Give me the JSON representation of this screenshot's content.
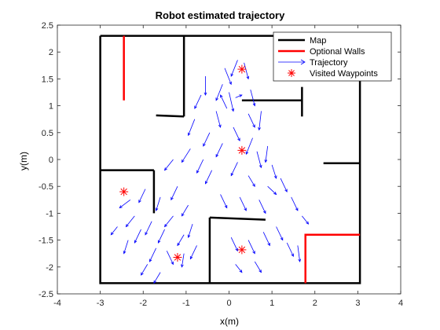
{
  "chart_data": {
    "type": "line",
    "title": "Robot estimated trajectory",
    "xlabel": "x(m)",
    "ylabel": "y(m)",
    "xlim": [
      -4,
      4
    ],
    "ylim": [
      -2.5,
      2.5
    ],
    "xticks": [
      -4,
      -3,
      -2,
      -1,
      0,
      1,
      2,
      3,
      4
    ],
    "yticks": [
      -2.5,
      -2,
      -1.5,
      -1,
      -0.5,
      0,
      0.5,
      1,
      1.5,
      2,
      2.5
    ],
    "grid": false,
    "legend_position": "top-right",
    "legend": [
      {
        "label": "Map",
        "color": "#000000",
        "style": "line"
      },
      {
        "label": "Optional Walls",
        "color": "#ff0000",
        "style": "line"
      },
      {
        "label": "Trajectory",
        "color": "#0000ff",
        "style": "arrow"
      },
      {
        "label": "Visited Waypoints",
        "color": "#ff0000",
        "style": "star"
      }
    ],
    "map_walls": [
      [
        [
          -3.0,
          2.3
        ],
        [
          3.05,
          2.3
        ],
        [
          3.05,
          -2.3
        ],
        [
          -3.0,
          -2.3
        ],
        [
          -3.0,
          2.3
        ]
      ],
      [
        [
          -1.05,
          2.3
        ],
        [
          -1.05,
          0.8
        ]
      ],
      [
        [
          -1.7,
          0.82
        ],
        [
          -1.05,
          0.8
        ]
      ],
      [
        [
          0.3,
          1.1
        ],
        [
          1.7,
          1.1
        ]
      ],
      [
        [
          1.7,
          1.35
        ],
        [
          1.7,
          0.8
        ]
      ],
      [
        [
          2.2,
          -0.07
        ],
        [
          3.05,
          -0.07
        ]
      ],
      [
        [
          -3.0,
          -0.2
        ],
        [
          -1.75,
          -0.2
        ]
      ],
      [
        [
          -1.75,
          -0.2
        ],
        [
          -1.75,
          -1.0
        ]
      ],
      [
        [
          -0.45,
          -1.08
        ],
        [
          0.85,
          -1.12
        ]
      ],
      [
        [
          -0.45,
          -1.08
        ],
        [
          -0.45,
          -2.3
        ]
      ]
    ],
    "optional_walls": [
      [
        [
          -2.45,
          2.3
        ],
        [
          -2.45,
          1.1
        ]
      ],
      [
        [
          1.78,
          -2.3
        ],
        [
          1.78,
          -1.4
        ],
        [
          3.05,
          -1.4
        ]
      ]
    ],
    "waypoints": [
      {
        "x": 0.3,
        "y": 1.68
      },
      {
        "x": 0.3,
        "y": 0.17
      },
      {
        "x": -2.45,
        "y": -0.6
      },
      {
        "x": -1.2,
        "y": -1.82
      },
      {
        "x": 0.3,
        "y": -1.68
      }
    ],
    "trajectory_segments": [
      [
        0.2,
        1.85,
        0.05,
        1.55
      ],
      [
        -0.1,
        1.7,
        0.05,
        1.4
      ],
      [
        0.35,
        1.8,
        0.45,
        1.5
      ],
      [
        -0.15,
        1.4,
        -0.3,
        1.1
      ],
      [
        0.5,
        1.3,
        0.6,
        1.0
      ],
      [
        -0.55,
        1.55,
        -0.55,
        1.2
      ],
      [
        -0.65,
        1.2,
        -0.8,
        0.95
      ],
      [
        0.0,
        1.25,
        0.1,
        0.9
      ],
      [
        0.15,
        1.15,
        0.3,
        1.2
      ],
      [
        -0.3,
        0.9,
        -0.2,
        0.6
      ],
      [
        0.45,
        0.85,
        0.6,
        0.6
      ],
      [
        0.75,
        0.9,
        0.7,
        0.55
      ],
      [
        -0.8,
        0.75,
        -0.95,
        0.45
      ],
      [
        -0.45,
        0.5,
        -0.6,
        0.25
      ],
      [
        0.1,
        0.6,
        0.25,
        0.35
      ],
      [
        0.55,
        0.4,
        0.4,
        0.1
      ],
      [
        -0.9,
        0.2,
        -1.1,
        -0.05
      ],
      [
        -0.15,
        0.3,
        -0.3,
        0.05
      ],
      [
        0.65,
        0.15,
        0.75,
        -0.15
      ],
      [
        -1.3,
        0.0,
        -1.5,
        -0.2
      ],
      [
        -0.6,
        0.0,
        -0.75,
        -0.25
      ],
      [
        0.2,
        -0.05,
        0.05,
        -0.3
      ],
      [
        -0.4,
        -0.2,
        -0.55,
        -0.45
      ],
      [
        0.45,
        -0.3,
        0.6,
        -0.5
      ],
      [
        0.9,
        -0.5,
        1.1,
        -0.65
      ],
      [
        1.2,
        -0.35,
        1.35,
        -0.6
      ],
      [
        1.45,
        -0.7,
        1.6,
        -0.95
      ],
      [
        0.7,
        -0.75,
        0.85,
        -1.0
      ],
      [
        0.25,
        -0.7,
        0.4,
        -0.95
      ],
      [
        -0.2,
        -0.65,
        -0.05,
        -0.9
      ],
      [
        -1.95,
        -0.55,
        -2.1,
        -0.8
      ],
      [
        -2.3,
        -0.75,
        -2.55,
        -0.9
      ],
      [
        -2.2,
        -1.05,
        -2.4,
        -1.25
      ],
      [
        -2.05,
        -1.3,
        -2.2,
        -1.55
      ],
      [
        -1.8,
        -1.15,
        -1.95,
        -1.4
      ],
      [
        -1.5,
        -1.3,
        -1.65,
        -1.55
      ],
      [
        -1.3,
        -1.05,
        -1.5,
        -1.25
      ],
      [
        -1.05,
        -1.4,
        -1.2,
        -1.6
      ],
      [
        -0.85,
        -1.2,
        -0.95,
        -1.45
      ],
      [
        -1.7,
        -1.65,
        -1.85,
        -1.9
      ],
      [
        -1.45,
        -1.7,
        -1.3,
        -1.95
      ],
      [
        -2.35,
        -1.5,
        -2.45,
        -1.75
      ],
      [
        -1.9,
        -1.95,
        -2.05,
        -2.15
      ],
      [
        -1.6,
        -2.1,
        -1.75,
        -2.3
      ],
      [
        -1.05,
        -1.75,
        -1.1,
        -2.0
      ],
      [
        -0.75,
        -1.6,
        -0.9,
        -1.85
      ],
      [
        0.05,
        -1.45,
        0.2,
        -1.7
      ],
      [
        0.45,
        -1.5,
        0.6,
        -1.75
      ],
      [
        0.8,
        -1.35,
        0.95,
        -1.6
      ],
      [
        1.1,
        -1.25,
        1.25,
        -1.5
      ],
      [
        1.35,
        -1.55,
        1.5,
        -1.8
      ],
      [
        1.6,
        -1.6,
        1.65,
        -1.9
      ],
      [
        0.6,
        -1.9,
        0.75,
        -2.1
      ],
      [
        0.15,
        -1.95,
        0.3,
        -2.1
      ],
      [
        -1.2,
        -0.5,
        -1.35,
        -0.75
      ],
      [
        -0.95,
        -0.85,
        -1.1,
        -1.05
      ],
      [
        1.0,
        -0.1,
        1.1,
        -0.35
      ],
      [
        -1.6,
        -0.7,
        -1.7,
        -0.95
      ],
      [
        -2.6,
        -1.25,
        -2.75,
        -1.4
      ],
      [
        1.7,
        -1.05,
        1.85,
        -1.2
      ],
      [
        0.9,
        0.25,
        0.85,
        -0.05
      ],
      [
        -0.05,
        0.95,
        -0.2,
        1.2
      ]
    ]
  }
}
